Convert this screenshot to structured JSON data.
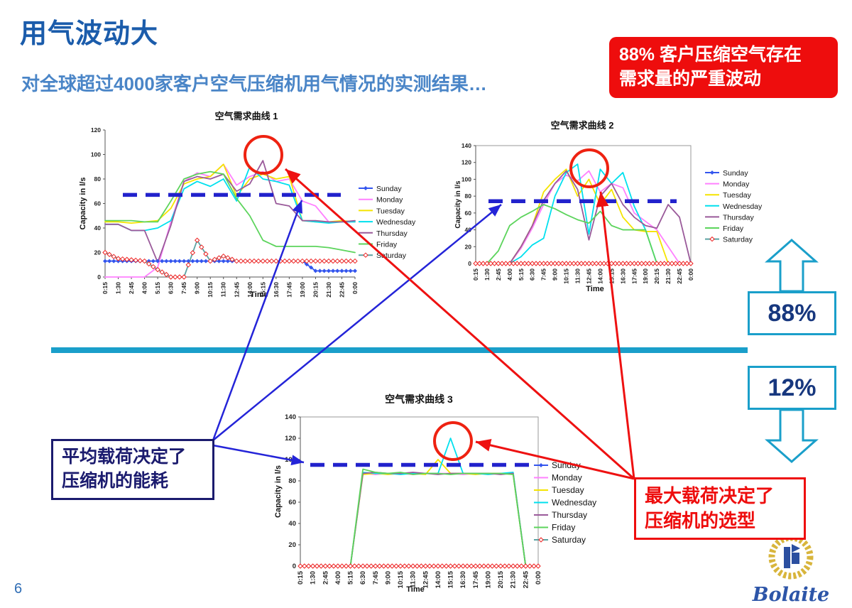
{
  "slide": {
    "title": "用气波动大",
    "subtitle": "对全球超过4000家客户空气压缩机用气情况的实测结果…",
    "page_number": "6"
  },
  "callouts": {
    "top_right": {
      "line1": "88% 客户压缩空气存在",
      "line2": "需求量的严重波动"
    },
    "average_load": {
      "line1": "平均载荷决定了",
      "line2": "压缩机的能耗"
    },
    "max_load": {
      "line1": "最大载荷决定了",
      "line2": "压缩机的选型"
    }
  },
  "stats": {
    "upper_percent": "88%",
    "lower_percent": "12%"
  },
  "logo": {
    "name": "Bolaite"
  },
  "colors": {
    "title_blue": "#1b5cab",
    "subtitle_blue": "#4a85c7",
    "callout_red": "#ee0d0d",
    "navy": "#1b1b6e",
    "divider_cyan": "#1a9fca",
    "average_dash_blue": "#2222cc",
    "annotation_blue": "#2424d8",
    "annotation_red": "#ee1111"
  },
  "chart_data": [
    {
      "type": "line",
      "title": "空气需求曲线 1",
      "xlabel": "Time",
      "ylabel": "Capacity in l/s",
      "ylim": [
        0,
        120
      ],
      "ytick_step": 20,
      "average_line": 67,
      "legend_position": "right",
      "categories": [
        "0:15",
        "1:30",
        "2:45",
        "4:00",
        "5:15",
        "6:30",
        "7:45",
        "9:00",
        "10:15",
        "11:30",
        "12:45",
        "14:00",
        "15:15",
        "16:30",
        "17:45",
        "19:00",
        "20:15",
        "21:30",
        "22:45",
        "0:00"
      ],
      "series": [
        {
          "name": "Sunday",
          "color": "#3355ee",
          "marker": "diamond",
          "marker_color": "#3355ee",
          "values": [
            13,
            13,
            13,
            13,
            13,
            13,
            13,
            13,
            13,
            13,
            13,
            13,
            13,
            13,
            13,
            13,
            5,
            5,
            5,
            5
          ]
        },
        {
          "name": "Monday",
          "color": "#ff80ff",
          "values": [
            0,
            0,
            0,
            0,
            8,
            45,
            78,
            85,
            82,
            92,
            75,
            82,
            86,
            78,
            80,
            62,
            58,
            45,
            45,
            45
          ]
        },
        {
          "name": "Tuesday",
          "color": "#f5e400",
          "values": [
            45,
            45,
            44,
            45,
            46,
            56,
            76,
            80,
            82,
            92,
            66,
            80,
            84,
            80,
            82,
            46,
            45,
            45,
            46,
            45
          ]
        },
        {
          "name": "Wednesday",
          "color": "#00e0ee",
          "values": [
            43,
            43,
            38,
            38,
            40,
            46,
            72,
            78,
            74,
            80,
            62,
            90,
            80,
            78,
            75,
            46,
            45,
            44,
            45,
            45
          ]
        },
        {
          "name": "Thursday",
          "color": "#9a5a9a",
          "values": [
            43,
            43,
            38,
            38,
            12,
            42,
            78,
            82,
            80,
            84,
            70,
            76,
            95,
            60,
            58,
            46,
            46,
            45,
            45,
            46
          ]
        },
        {
          "name": "Friday",
          "color": "#5cd45c",
          "values": [
            46,
            46,
            46,
            45,
            45,
            62,
            80,
            84,
            86,
            84,
            64,
            50,
            30,
            25,
            25,
            25,
            25,
            24,
            22,
            20
          ]
        },
        {
          "name": "Saturday",
          "color": "#5ba3a3",
          "marker": "open-diamond",
          "marker_color": "#ee2222",
          "values": [
            20,
            15,
            14,
            13,
            6,
            0,
            0,
            30,
            13,
            17,
            13,
            13,
            13,
            13,
            13,
            13,
            13,
            13,
            13,
            13
          ]
        }
      ]
    },
    {
      "type": "line",
      "title": "空气需求曲线 2",
      "xlabel": "Time",
      "ylabel": "Capacity in l/s",
      "ylim": [
        0,
        140
      ],
      "ytick_step": 20,
      "average_line": 74,
      "legend_position": "right",
      "categories": [
        "0:15",
        "1:30",
        "2:45",
        "4:00",
        "5:15",
        "6:30",
        "7:45",
        "9:00",
        "10:15",
        "11:30",
        "12:45",
        "14:00",
        "15:15",
        "16:30",
        "17:45",
        "19:00",
        "20:15",
        "21:30",
        "22:45",
        "0:00"
      ],
      "series": [
        {
          "name": "Sunday",
          "color": "#3355ee",
          "marker": "diamond",
          "marker_color": "#3355ee",
          "values": [
            0,
            0,
            0,
            0,
            0,
            0,
            0,
            0,
            0,
            0,
            0,
            0,
            0,
            0,
            0,
            0,
            0,
            0,
            0,
            0
          ]
        },
        {
          "name": "Monday",
          "color": "#ff80ff",
          "values": [
            0,
            0,
            0,
            0,
            18,
            42,
            70,
            95,
            105,
            98,
            110,
            85,
            95,
            90,
            60,
            50,
            40,
            20,
            0,
            0
          ]
        },
        {
          "name": "Tuesday",
          "color": "#f5e400",
          "values": [
            0,
            0,
            0,
            0,
            20,
            45,
            85,
            100,
            112,
            80,
            100,
            70,
            88,
            55,
            40,
            38,
            38,
            0,
            0,
            0
          ]
        },
        {
          "name": "Wednesday",
          "color": "#00e0ee",
          "values": [
            0,
            0,
            0,
            0,
            8,
            22,
            30,
            80,
            108,
            118,
            35,
            112,
            95,
            108,
            68,
            40,
            0,
            0,
            0,
            0
          ]
        },
        {
          "name": "Thursday",
          "color": "#9a5a9a",
          "values": [
            0,
            0,
            0,
            0,
            20,
            45,
            75,
            95,
            110,
            88,
            28,
            80,
            95,
            70,
            55,
            45,
            42,
            70,
            55,
            0
          ]
        },
        {
          "name": "Friday",
          "color": "#5cd45c",
          "values": [
            0,
            0,
            15,
            45,
            55,
            62,
            70,
            65,
            58,
            52,
            48,
            62,
            45,
            40,
            40,
            40,
            0,
            0,
            0,
            0
          ]
        },
        {
          "name": "Saturday",
          "color": "#5ba3a3",
          "marker": "open-diamond",
          "marker_color": "#ee2222",
          "values": [
            0,
            0,
            0,
            0,
            0,
            0,
            0,
            0,
            0,
            0,
            0,
            0,
            0,
            0,
            0,
            0,
            0,
            0,
            0,
            0
          ]
        }
      ]
    },
    {
      "type": "line",
      "title": "空气需求曲线 3",
      "xlabel": "Time",
      "ylabel": "Capacity in l/s",
      "ylim": [
        0,
        140
      ],
      "ytick_step": 20,
      "average_line": 95,
      "legend_position": "right",
      "categories": [
        "0:15",
        "1:30",
        "2:45",
        "4:00",
        "5:15",
        "6:30",
        "7:45",
        "9:00",
        "10:15",
        "11:30",
        "12:45",
        "14:00",
        "15:15",
        "16:30",
        "17:45",
        "19:00",
        "20:15",
        "21:30",
        "22:45",
        "0:00"
      ],
      "series": [
        {
          "name": "Sunday",
          "color": "#3355ee",
          "marker": "diamond",
          "marker_color": "#3355ee",
          "values": [
            0,
            0,
            0,
            0,
            0,
            0,
            0,
            0,
            0,
            0,
            0,
            0,
            0,
            0,
            0,
            0,
            0,
            0,
            0,
            0
          ]
        },
        {
          "name": "Monday",
          "color": "#ff80ff",
          "values": [
            0,
            0,
            0,
            0,
            0,
            87,
            86,
            87,
            87,
            86,
            87,
            87,
            87,
            86,
            87,
            87,
            87,
            87,
            0,
            0
          ]
        },
        {
          "name": "Tuesday",
          "color": "#f5e400",
          "values": [
            0,
            0,
            0,
            0,
            0,
            86,
            87,
            86,
            87,
            87,
            86,
            100,
            87,
            87,
            86,
            87,
            87,
            86,
            0,
            0
          ]
        },
        {
          "name": "Wednesday",
          "color": "#00e0ee",
          "values": [
            0,
            0,
            0,
            0,
            0,
            88,
            87,
            87,
            86,
            87,
            87,
            87,
            120,
            87,
            87,
            86,
            87,
            88,
            0,
            0
          ]
        },
        {
          "name": "Thursday",
          "color": "#9a5a9a",
          "values": [
            0,
            0,
            0,
            0,
            0,
            87,
            88,
            87,
            87,
            88,
            87,
            86,
            87,
            87,
            87,
            87,
            86,
            87,
            0,
            0
          ]
        },
        {
          "name": "Friday",
          "color": "#5cd45c",
          "values": [
            0,
            0,
            0,
            0,
            0,
            91,
            88,
            87,
            88,
            86,
            87,
            87,
            86,
            87,
            87,
            87,
            87,
            86,
            0,
            0
          ]
        },
        {
          "name": "Saturday",
          "color": "#5ba3a3",
          "marker": "open-diamond",
          "marker_color": "#ee2222",
          "values": [
            0,
            0,
            0,
            0,
            0,
            0,
            0,
            0,
            0,
            0,
            0,
            0,
            0,
            0,
            0,
            0,
            0,
            0,
            0,
            0
          ]
        }
      ]
    }
  ]
}
